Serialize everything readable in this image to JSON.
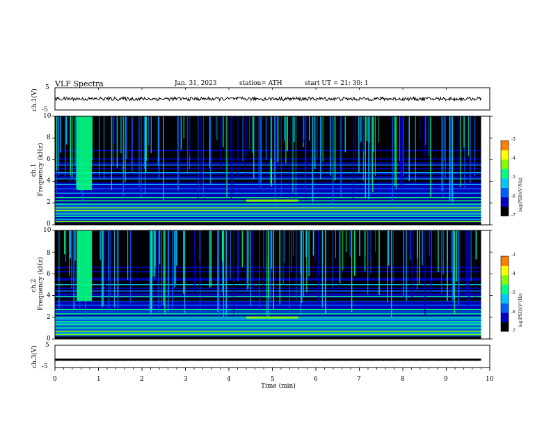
{
  "header": {
    "title": "VLF  Spectra",
    "date": "Jan.  31,  2023",
    "station": "station= ATH",
    "start": "start  UT  =    21: 30: 1"
  },
  "colors": {
    "colormap": [
      "#000000",
      "#0000c8",
      "#0060ff",
      "#00c8ff",
      "#00ff80",
      "#80ff00",
      "#ffff00",
      "#ff8000",
      "#ff0000",
      "#ffffff"
    ]
  },
  "panels": {
    "ch1_wave": {
      "ylabel": "ch.1(V)",
      "ticks": [
        "5",
        "-5"
      ]
    },
    "ch1_spec": {
      "ylabel_line1": "ch.1",
      "ylabel_line2": "Frequency  (kHz)",
      "ticks": [
        "10",
        "8",
        "6",
        "4",
        "2",
        "0"
      ]
    },
    "ch2_spec": {
      "ylabel_line1": "ch.2",
      "ylabel_line2": "Frequency  (kHz)",
      "ticks": [
        "10",
        "8",
        "6",
        "4",
        "2",
        "0"
      ]
    },
    "ch3_wave": {
      "ylabel": "ch.3(V)",
      "ticks": [
        "5",
        "-5"
      ]
    }
  },
  "colorbar": {
    "ticks": [
      "-3",
      "-4",
      "-5",
      "-6",
      "-7"
    ],
    "label": "log(PSD)(V²/Hz)"
  },
  "chart_data": [
    {
      "type": "line",
      "name": "ch.1 waveform",
      "ylabel": "ch.1(V)",
      "ylim": [
        -5,
        5
      ],
      "xlim": [
        0,
        10
      ],
      "x_extent": [
        0,
        9.8
      ],
      "mean": 0,
      "amplitude": 0.8
    },
    {
      "type": "heatmap",
      "ylabel": "Frequency  (kHz)",
      "channel": "ch.1",
      "xlim": [
        0,
        10
      ],
      "ylim": [
        0,
        10
      ],
      "x_extent": [
        0,
        9.8
      ],
      "value_range_logPSD": [
        -7,
        -3
      ],
      "background_logPSD": {
        "below_2kHz": -5.8,
        "2_to_4kHz": -6.3,
        "4_to_7kHz": -6.6,
        "above_7kHz": -6.9
      },
      "persistent_lines_kHz": [
        0.3,
        0.5,
        0.75,
        1.0,
        1.3,
        1.55,
        1.9,
        2.2,
        2.5,
        2.9,
        3.3,
        3.7,
        4.2,
        4.8,
        5.5
      ],
      "dark_band_kHz": [
        3.9,
        4.2
      ],
      "broadband_burst": {
        "t_min": [
          0.5,
          0.85
        ],
        "f_kHz": [
          3.2,
          10
        ],
        "logPSD": -5.0
      },
      "interference_segment": {
        "t_min": [
          4.4,
          5.6
        ],
        "f_kHz": 2.2,
        "logPSD": -4.2
      }
    },
    {
      "type": "heatmap",
      "ylabel": "Frequency  (kHz)",
      "channel": "ch.2",
      "xlim": [
        0,
        10
      ],
      "ylim": [
        0,
        10
      ],
      "x_extent": [
        0,
        9.8
      ],
      "value_range_logPSD": [
        -7,
        -3
      ],
      "background_logPSD": {
        "below_2kHz": -5.6,
        "2_to_4kHz": -6.2,
        "4_to_7kHz": -6.6,
        "above_7kHz": -6.9
      },
      "persistent_lines_kHz": [
        0.4,
        0.7,
        1.0,
        1.3,
        1.6,
        2.0,
        2.3,
        2.7,
        3.1,
        3.5,
        3.9,
        4.4,
        5.0
      ],
      "dark_band_kHz": [
        3.5,
        3.8
      ],
      "broadband_burst": {
        "t_min": [
          0.5,
          0.85
        ],
        "f_kHz": [
          3.5,
          10
        ],
        "logPSD": -5.0
      },
      "interference_segment": {
        "t_min": [
          4.4,
          5.6
        ],
        "f_kHz": 1.95,
        "logPSD": -4.2
      }
    },
    {
      "type": "line",
      "name": "ch.3 waveform",
      "ylabel": "ch.3(V)",
      "ylim": [
        -5,
        5
      ],
      "xlim": [
        0,
        10
      ],
      "x_extent": [
        0,
        9.8
      ],
      "mean": -1.5,
      "amplitude": 0.15
    }
  ],
  "xaxis": {
    "label": "Time  (min)",
    "ticks": [
      "0",
      "1",
      "2",
      "3",
      "4",
      "5",
      "6",
      "7",
      "8",
      "9",
      "10"
    ]
  }
}
